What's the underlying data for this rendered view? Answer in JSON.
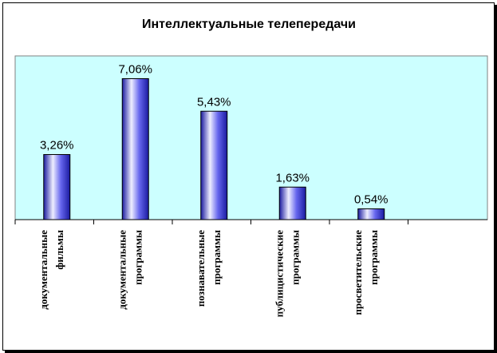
{
  "chart_data": {
    "type": "bar",
    "title": "Интеллектуальные телепередачи",
    "xlabel": "",
    "ylabel": "",
    "ylim": [
      0,
      8
    ],
    "grid": false,
    "legend": "none",
    "categories": [
      [
        "документальные",
        "фильмы"
      ],
      [
        "документальные",
        "программы"
      ],
      [
        "познавательные",
        "программы"
      ],
      [
        "публицистические",
        "программы"
      ],
      [
        "просветительские",
        "программы"
      ]
    ],
    "values": [
      3.26,
      7.06,
      5.43,
      1.63,
      0.54
    ],
    "value_labels": [
      "3,26%",
      "7,06%",
      "5,43%",
      "1,63%",
      "0,54%"
    ]
  },
  "colors": {
    "plot_area": "#ccffff",
    "bar_dark": "#1a1aa0",
    "bar_mid": "#6666ee",
    "bar_light": "#eeeeff"
  }
}
